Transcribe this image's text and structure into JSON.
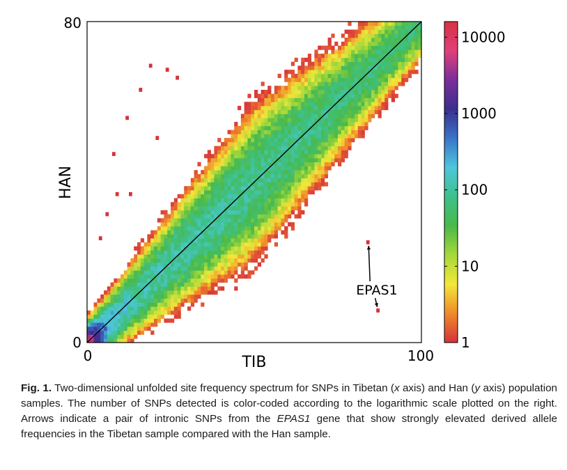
{
  "chart_data": {
    "type": "heatmap",
    "title": "",
    "xlabel": "TIB",
    "ylabel": "HAN",
    "xlim": [
      0,
      100
    ],
    "ylim": [
      0,
      80
    ],
    "x_ticks": [
      "0",
      "100"
    ],
    "y_ticks": [
      "0",
      "80"
    ],
    "diagonal_line": {
      "from": [
        0,
        0
      ],
      "to": [
        100,
        80
      ]
    },
    "colorbar": {
      "scale": "log",
      "range": [
        1,
        16000
      ],
      "tick_values": [
        1,
        10,
        100,
        1000,
        10000
      ],
      "tick_labels": [
        "1",
        "10",
        "100",
        "1000",
        "10000"
      ],
      "colors": [
        "#d6323c",
        "#f08a2a",
        "#f2e83a",
        "#a6d83a",
        "#49b94a",
        "#3ec18a",
        "#4ec6dc",
        "#3a74c8",
        "#3b2f8f",
        "#7a2e9a",
        "#e0407a",
        "#d63242"
      ]
    },
    "annotation": {
      "label": "EPAS1",
      "points": [
        {
          "x": 84,
          "y": 25
        },
        {
          "x": 87,
          "y": 8
        }
      ]
    },
    "outlier_points": [
      {
        "x": 19,
        "y": 69
      },
      {
        "x": 24,
        "y": 68
      },
      {
        "x": 16,
        "y": 63
      },
      {
        "x": 12,
        "y": 56
      },
      {
        "x": 8,
        "y": 47
      },
      {
        "x": 9,
        "y": 37
      },
      {
        "x": 6,
        "y": 32
      },
      {
        "x": 4,
        "y": 26
      },
      {
        "x": 13,
        "y": 37
      },
      {
        "x": 27,
        "y": 66
      },
      {
        "x": 21,
        "y": 51
      }
    ]
  },
  "caption": {
    "label": "Fig. 1.",
    "text_1": " Two-dimensional unfolded site frequency spectrum for SNPs in Tibetan (",
    "x_axis": "x",
    "text_2": " axis) and Han (",
    "y_axis": "y",
    "text_3": " axis) population samples. The number of SNPs detected is color-coded according to the logarithmic scale plotted on the right. Arrows indicate a pair of intronic SNPs from the ",
    "gene": "EPAS1",
    "text_4": " gene that show strongly elevated derived allele frequencies in the Tibetan sample compared with the Han sample."
  }
}
